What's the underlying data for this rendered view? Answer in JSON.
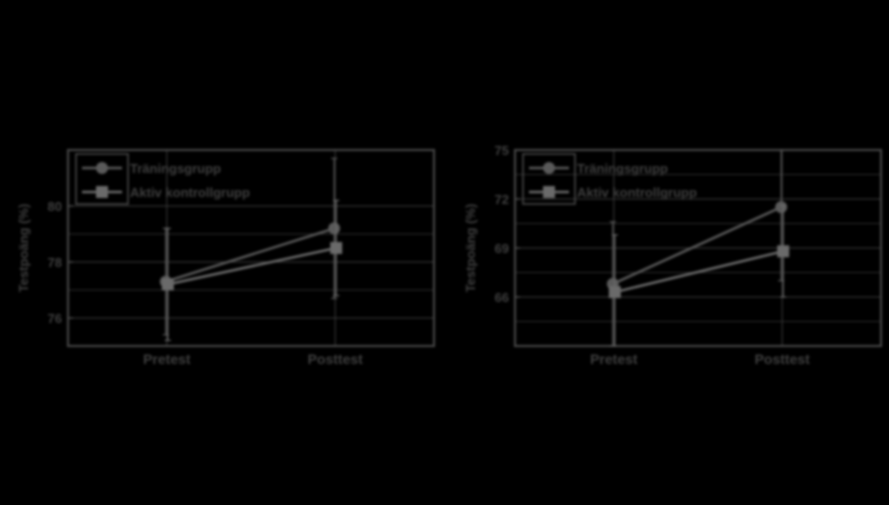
{
  "colors": {
    "background": "#000000",
    "frame": "#4a4a4a",
    "grid": "#3a3a3a",
    "text": "#3f3f3f",
    "series1": "#5a5a5a",
    "series2": "#6a6a6a"
  },
  "chart_data": [
    {
      "type": "line",
      "title": "",
      "xlabel": "",
      "ylabel": "Testpoäng (%)",
      "categories": [
        "Pretest",
        "Posttest"
      ],
      "ylim": [
        75,
        82
      ],
      "yticks": [
        76,
        78,
        80
      ],
      "ytick_labels": [
        "76",
        "78",
        "80"
      ],
      "grid": true,
      "legend_position": "top-left",
      "series": [
        {
          "name": "Träningsgrupp",
          "marker": "circle",
          "values": [
            77.3,
            79.2
          ],
          "error": [
            1.9,
            2.5
          ]
        },
        {
          "name": "Aktiv kontrollgrupp",
          "marker": "square",
          "values": [
            77.2,
            78.5
          ],
          "error": [
            2.0,
            1.7
          ]
        }
      ]
    },
    {
      "type": "line",
      "title": "",
      "xlabel": "",
      "ylabel": "Testpoäng (%)",
      "categories": [
        "Pretest",
        "Posttest"
      ],
      "ylim": [
        63,
        75
      ],
      "yticks": [
        66,
        69,
        72,
        75
      ],
      "ytick_labels": [
        "66",
        "69",
        "72",
        "75"
      ],
      "grid": true,
      "legend_position": "top-left",
      "series": [
        {
          "name": "Träningsgrupp",
          "marker": "circle",
          "values": [
            66.8,
            71.5
          ],
          "error": [
            3.8,
            4.5
          ]
        },
        {
          "name": "Aktiv kontrollgrupp",
          "marker": "square",
          "values": [
            66.3,
            68.8
          ],
          "error": [
            3.5,
            2.8
          ]
        }
      ]
    }
  ]
}
